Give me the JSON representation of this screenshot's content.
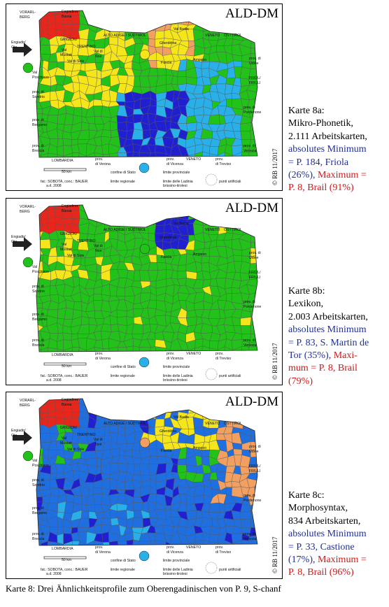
{
  "panels": [
    {
      "title": "ALD-DM",
      "caption": [
        [
          {
            "text": "Karte 8a:",
            "color": "#000000"
          }
        ],
        [
          {
            "text": "Mikro-Phonetik,",
            "color": "#000000"
          }
        ],
        [
          {
            "text": "2.111 Arbeitskarten,",
            "color": "#000000"
          }
        ],
        [
          {
            "text": "absolutes Minimum",
            "color": "#1f2fa0"
          }
        ],
        [
          {
            "text": "= P. 184, Friola",
            "color": "#1f2fa0"
          }
        ],
        [
          {
            "text": "(26%),",
            "color": "#1f2fa0"
          },
          {
            "text": " Maximum =",
            "color": "#d01818"
          }
        ],
        [
          {
            "text": "P. 8, Brail (91%)",
            "color": "#d01818"
          }
        ]
      ]
    },
    {
      "title": "ALD-DM",
      "caption": [
        [
          {
            "text": "Karte 8b:",
            "color": "#000000"
          }
        ],
        [
          {
            "text": "Lexikon,",
            "color": "#000000"
          }
        ],
        [
          {
            "text": "2.003 Arbeitskarten,",
            "color": "#000000"
          }
        ],
        [
          {
            "text": "absolutes Minimum",
            "color": "#1f2fa0"
          }
        ],
        [
          {
            "text": "= P. 83, S. Martin de",
            "color": "#1f2fa0"
          }
        ],
        [
          {
            "text": "Tor (35%),",
            "color": "#1f2fa0"
          },
          {
            "text": " Maxi-",
            "color": "#d01818"
          }
        ],
        [
          {
            "text": "mum = P. 8, Brail",
            "color": "#d01818"
          }
        ],
        [
          {
            "text": "(79%)",
            "color": "#d01818"
          }
        ]
      ]
    },
    {
      "title": "ALD-DM",
      "caption": [
        [
          {
            "text": "Karte 8c:",
            "color": "#000000"
          }
        ],
        [
          {
            "text": "Morphosyntax,",
            "color": "#000000"
          }
        ],
        [
          {
            "text": "834 Arbeitskarten,",
            "color": "#000000"
          }
        ],
        [
          {
            "text": "absolutes Minimum",
            "color": "#1f2fa0"
          }
        ],
        [
          {
            "text": "= P. 33, Castione",
            "color": "#1f2fa0"
          }
        ],
        [
          {
            "text": "(17%),",
            "color": "#1f2fa0"
          },
          {
            "text": " Maximum =",
            "color": "#d01818"
          }
        ],
        [
          {
            "text": "P. 8, Brail (96%)",
            "color": "#d01818"
          }
        ]
      ]
    }
  ],
  "map_labels": [
    "VORARL-",
    "BERG",
    "Engiadina",
    "Bassa",
    "GRIGIONI",
    "Engiadin'",
    "Ota",
    "Val",
    "Müstair",
    "TRENTINO",
    "Val di Sole",
    "Val di",
    "Non",
    "ALTO ADIGE / SÜDTIROL",
    "Val Badia",
    "VENETO",
    "OSTTIROL",
    "Gherdëina",
    "Fascia",
    "Ampezo",
    "prov. di",
    "Udine",
    "FRIÜL/",
    "FRIULI",
    "prov. di",
    "Pordenone",
    "Val",
    "Poschiavo",
    "prov. di",
    "Sondrio",
    "prov. di",
    "Bergamo",
    "prov. di",
    "Brescia",
    "prov. di",
    "Venezia",
    "LOMBARDIA",
    "prov.",
    "di Verona",
    "prov.",
    "di Vicenza",
    "VENETO",
    "prov.",
    "di Treviso",
    "50 km",
    "confine di Stato",
    "limite regionale",
    "limite provinciale",
    "limite delle Ladinia",
    "brissino-tirolesi",
    "punti artificiali",
    "fat.: SOBOTA, conc.: BAUER",
    "a.d. 2008"
  ],
  "copyright": "© RB 11/2017",
  "footer": "Karte 8: Drei Ähnlichkeitsprofile zum Oberengadinischen von P. 9, S-chanf"
}
